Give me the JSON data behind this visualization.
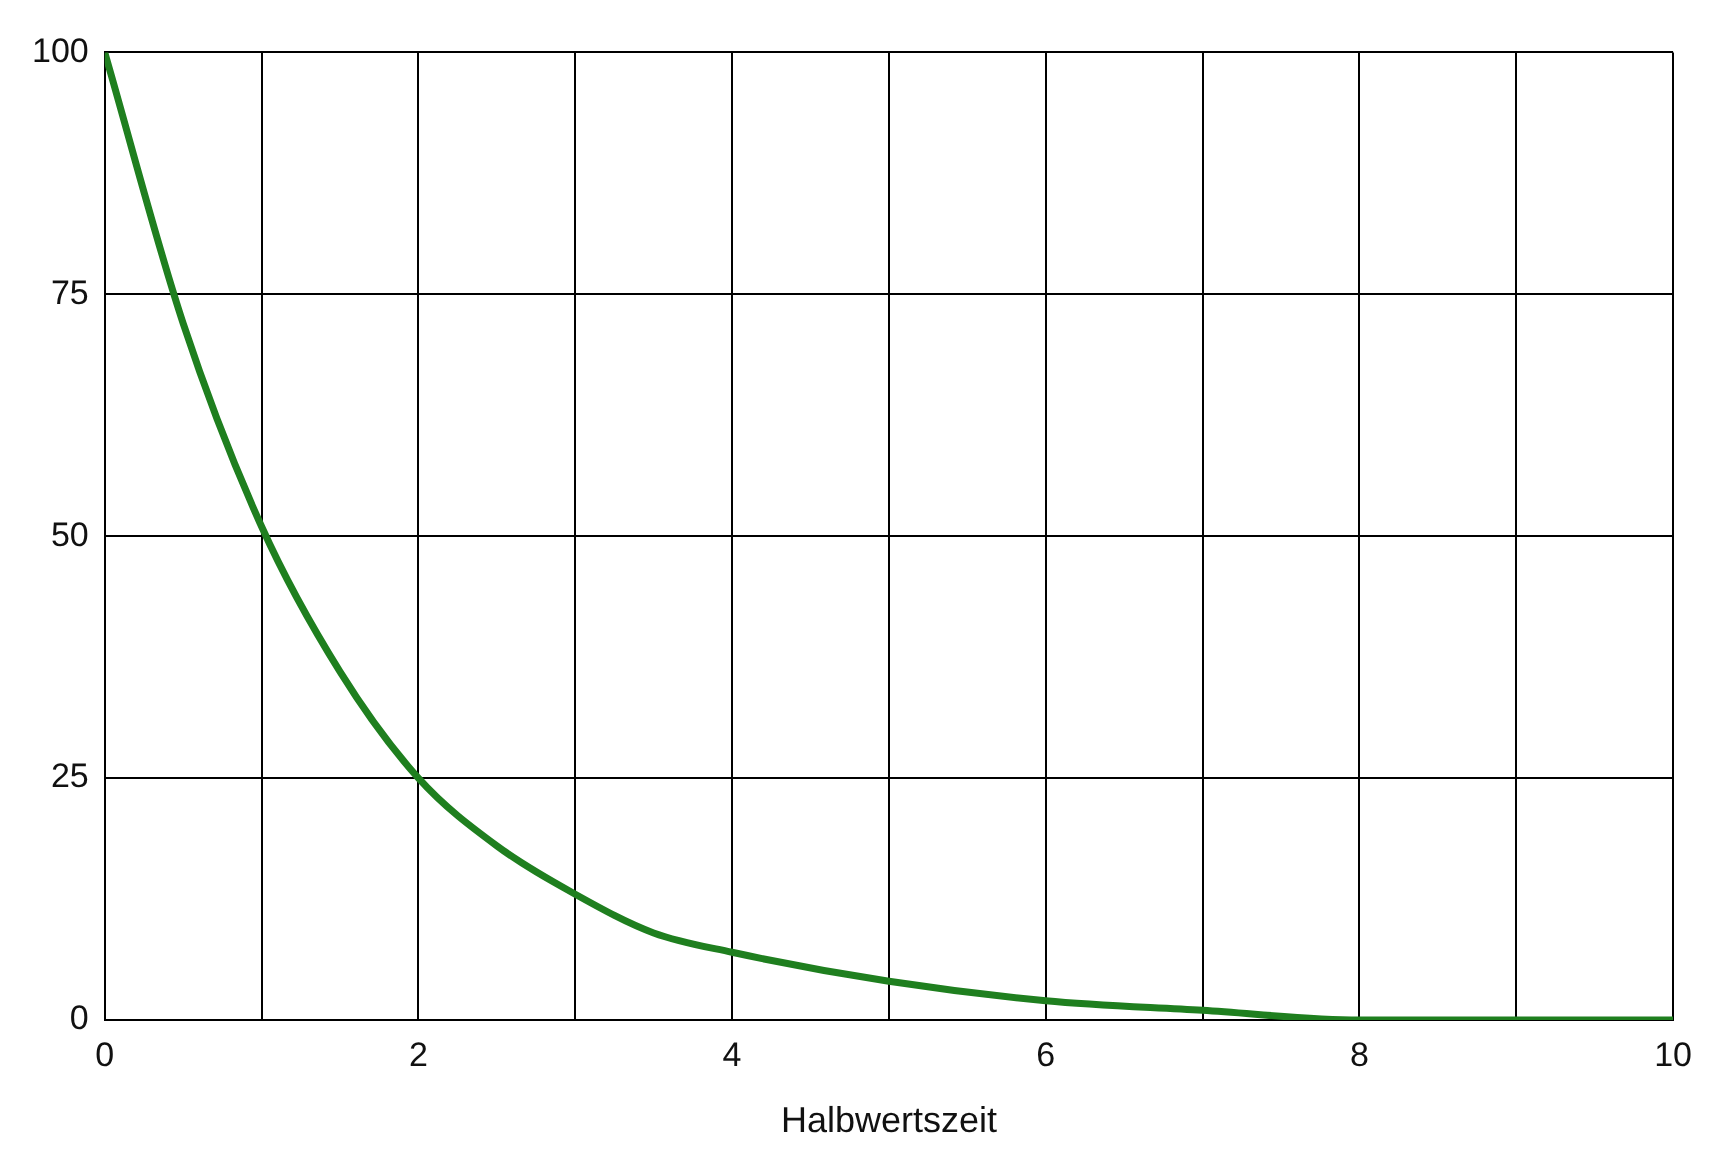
{
  "chart_data": {
    "type": "line",
    "xlabel": "Halbwertszeit",
    "x": [
      0,
      0.5,
      1,
      1.5,
      2,
      2.5,
      3,
      3.5,
      4,
      5,
      6,
      7,
      8,
      9,
      10
    ],
    "series": [
      {
        "color": "#1f7f1f",
        "values": [
          100,
          72,
          51,
          36,
          25,
          18,
          13,
          9,
          7,
          4,
          2,
          1,
          0,
          0,
          0
        ]
      }
    ],
    "xlim": [
      0,
      10
    ],
    "xticks": [
      0,
      {
        "value": 1,
        "label": null
      },
      2,
      {
        "value": 3,
        "label": null
      },
      4,
      {
        "value": 5,
        "label": null
      },
      6,
      {
        "value": 7,
        "label": null
      },
      8,
      {
        "value": 9,
        "label": null
      },
      10
    ],
    "ylim": [
      0,
      100
    ],
    "yticks": [
      0,
      25,
      50,
      75,
      100
    ],
    "grid": true,
    "legend": false,
    "marker": "none",
    "line_style": "solid"
  }
}
